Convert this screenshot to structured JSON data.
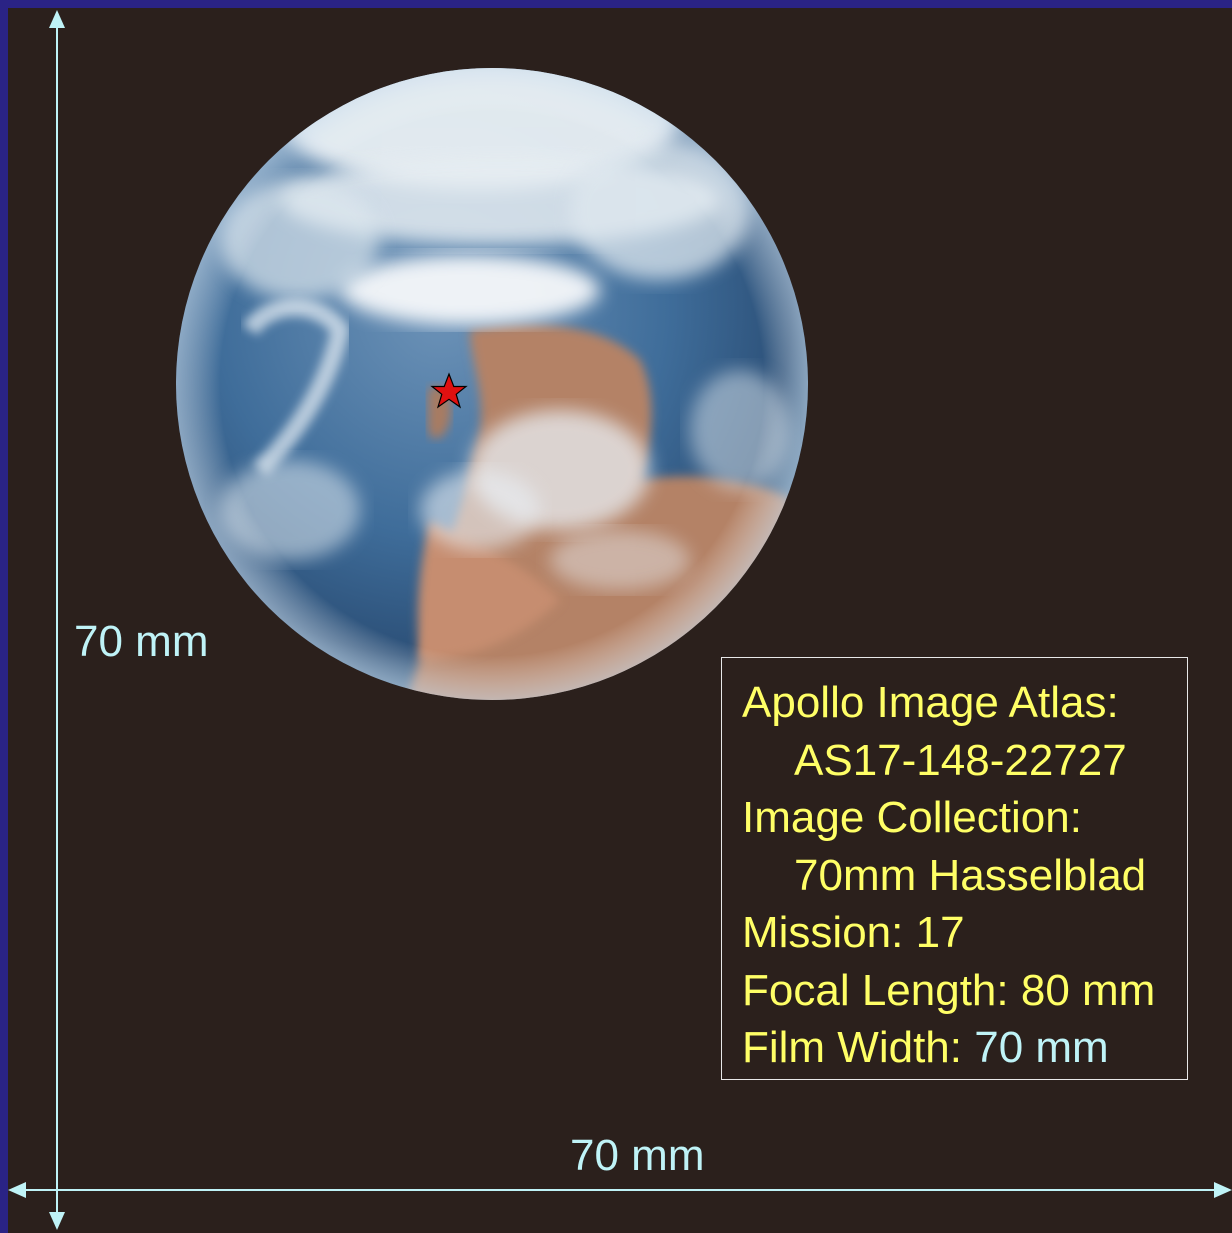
{
  "colors": {
    "outer_border": "#2a2385",
    "space_background": "#2b201c",
    "dimension_color": "#bff3f7",
    "info_text_color": "#ffff66",
    "marker_color": "#e01010"
  },
  "dimensions": {
    "vertical_label": "70 mm",
    "horizontal_label": "70 mm"
  },
  "info": {
    "line1": "Apollo Image Atlas:",
    "line2": "AS17-148-22727",
    "line3": "Image Collection:",
    "line4": "70mm Hasselblad",
    "line5": "Mission: 17",
    "line6": "Focal Length: 80 mm",
    "line7_label": "Film Width: ",
    "line7_value": "70 mm"
  },
  "photo": {
    "subject": "Earth from space",
    "marker_icon": "star-icon"
  }
}
